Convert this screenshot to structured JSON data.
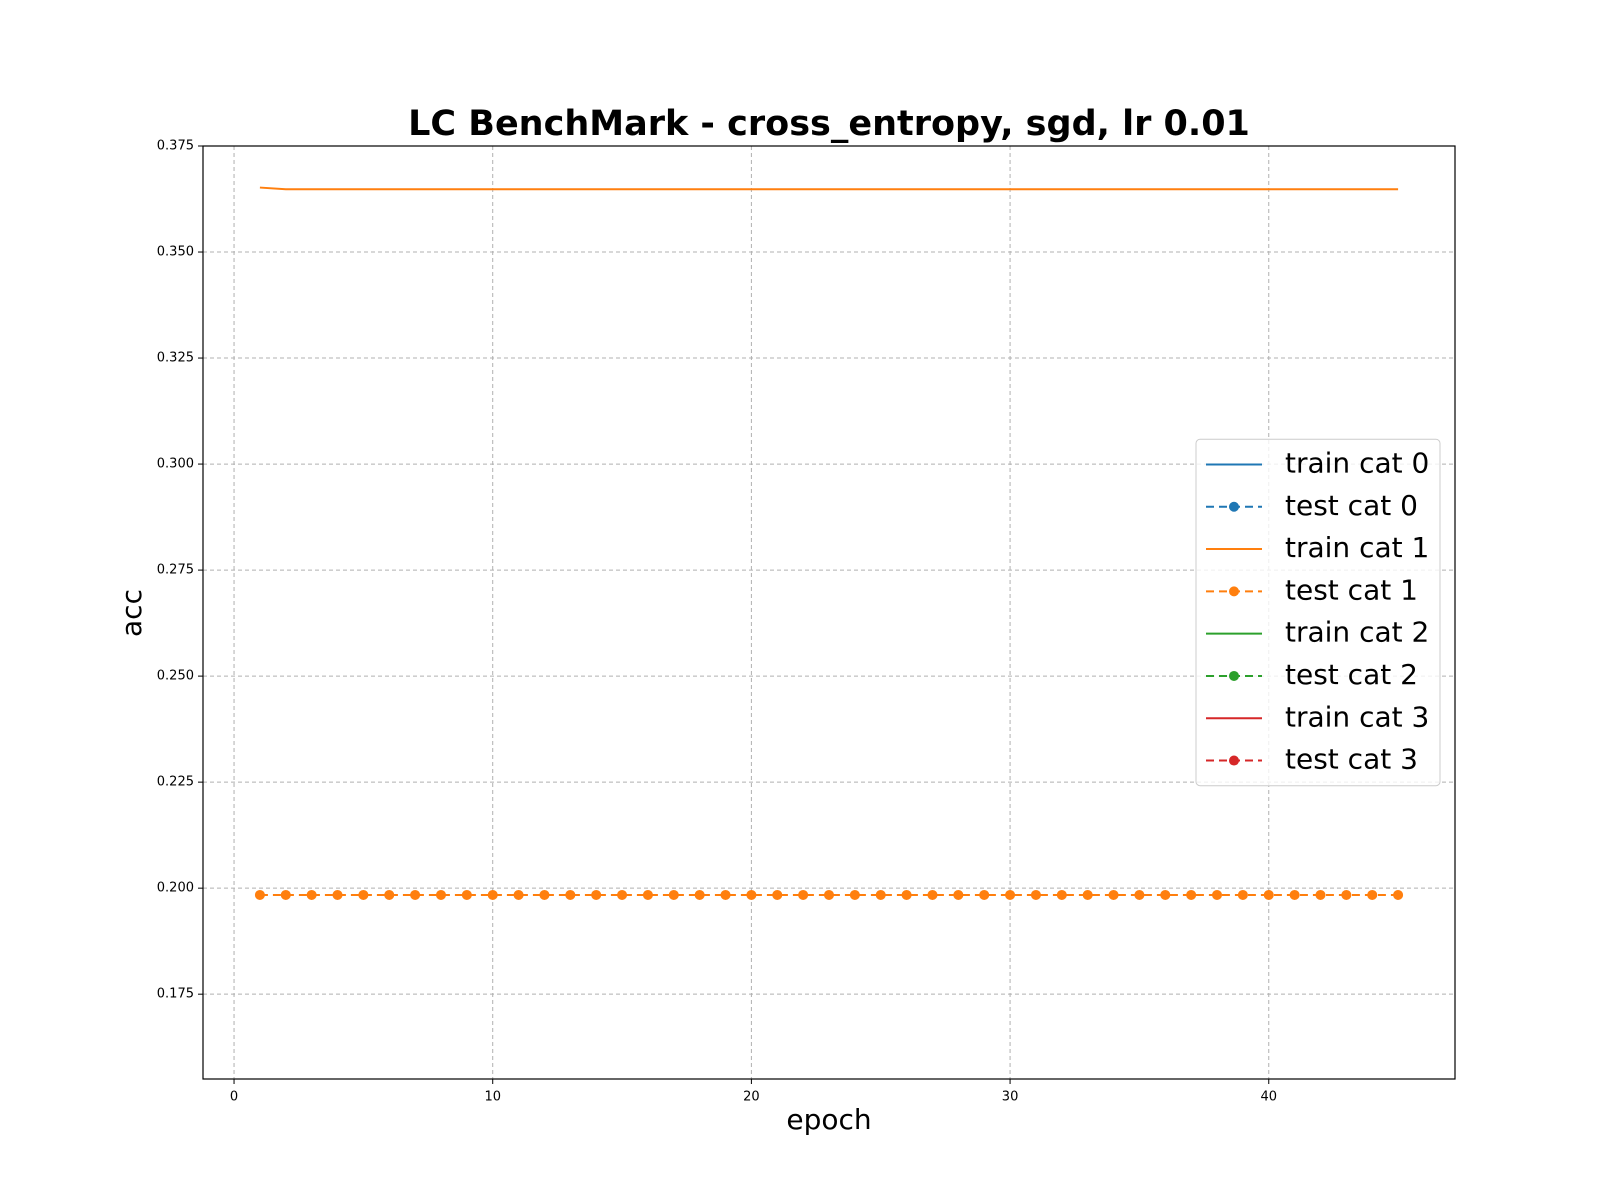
{
  "chart_data": {
    "type": "line",
    "title": "LC BenchMark - cross_entropy, sgd, lr 0.01",
    "xlabel": "epoch",
    "ylabel": "acc",
    "x": [
      1,
      2,
      3,
      4,
      5,
      6,
      7,
      8,
      9,
      10,
      11,
      12,
      13,
      14,
      15,
      16,
      17,
      18,
      19,
      20,
      21,
      22,
      23,
      24,
      25,
      26,
      27,
      28,
      29,
      30,
      31,
      32,
      33,
      34,
      35,
      36,
      37,
      38,
      39,
      40,
      41,
      42,
      43,
      44,
      45
    ],
    "xlim": [
      -1.2,
      47.2
    ],
    "xticks": [
      0,
      10,
      20,
      30,
      40
    ],
    "ylim": [
      0.155,
      0.375
    ],
    "yticks": [
      0.175,
      {
        "value": 0.2,
        "label": "0.200"
      },
      0.225,
      {
        "value": 0.25,
        "label": "0.250"
      },
      0.275,
      {
        "value": 0.3,
        "label": "0.300"
      },
      0.325,
      {
        "value": 0.35,
        "label": "0.350"
      },
      0.375
    ],
    "grid": true,
    "legend": "center right",
    "series": [
      {
        "name": "train cat 0",
        "color": "#1f77b4",
        "linestyle": "solid",
        "marker": "none",
        "values": [
          null,
          null,
          null,
          null,
          null,
          null,
          null,
          null,
          null,
          null,
          null,
          null,
          null,
          null,
          null,
          null,
          null,
          null,
          null,
          null,
          null,
          null,
          null,
          null,
          null,
          null,
          null,
          null,
          null,
          null,
          null,
          null,
          null,
          null,
          null,
          null,
          null,
          null,
          null,
          null,
          null,
          null,
          null,
          null,
          null
        ]
      },
      {
        "name": "test cat 0",
        "color": "#1f77b4",
        "linestyle": "dashed",
        "marker": "circle",
        "values": [
          null,
          null,
          null,
          null,
          null,
          null,
          null,
          null,
          null,
          null,
          null,
          null,
          null,
          null,
          null,
          null,
          null,
          null,
          null,
          null,
          null,
          null,
          null,
          null,
          null,
          null,
          null,
          null,
          null,
          null,
          null,
          null,
          null,
          null,
          null,
          null,
          null,
          null,
          null,
          null,
          null,
          null,
          null,
          null,
          null
        ]
      },
      {
        "name": "train cat 1",
        "color": "#ff7f0e",
        "linestyle": "solid",
        "marker": "none",
        "values": [
          0.3652,
          0.3648,
          0.3648,
          0.3648,
          0.3648,
          0.3648,
          0.3648,
          0.3648,
          0.3648,
          0.3648,
          0.3648,
          0.3648,
          0.3648,
          0.3648,
          0.3648,
          0.3648,
          0.3648,
          0.3648,
          0.3648,
          0.3648,
          0.3648,
          0.3648,
          0.3648,
          0.3648,
          0.3648,
          0.3648,
          0.3648,
          0.3648,
          0.3648,
          0.3648,
          0.3648,
          0.3648,
          0.3648,
          0.3648,
          0.3648,
          0.3648,
          0.3648,
          0.3648,
          0.3648,
          0.3648,
          0.3648,
          0.3648,
          0.3648,
          0.3648,
          0.3648
        ]
      },
      {
        "name": "test cat 1",
        "color": "#ff7f0e",
        "linestyle": "dashed",
        "marker": "circle",
        "values": [
          0.1984,
          0.1984,
          0.1984,
          0.1984,
          0.1984,
          0.1984,
          0.1984,
          0.1984,
          0.1984,
          0.1984,
          0.1984,
          0.1984,
          0.1984,
          0.1984,
          0.1984,
          0.1984,
          0.1984,
          0.1984,
          0.1984,
          0.1984,
          0.1984,
          0.1984,
          0.1984,
          0.1984,
          0.1984,
          0.1984,
          0.1984,
          0.1984,
          0.1984,
          0.1984,
          0.1984,
          0.1984,
          0.1984,
          0.1984,
          0.1984,
          0.1984,
          0.1984,
          0.1984,
          0.1984,
          0.1984,
          0.1984,
          0.1984,
          0.1984,
          0.1984,
          0.1984
        ]
      },
      {
        "name": "train cat 2",
        "color": "#2ca02c",
        "linestyle": "solid",
        "marker": "none",
        "values": [
          null,
          null,
          null,
          null,
          null,
          null,
          null,
          null,
          null,
          null,
          null,
          null,
          null,
          null,
          null,
          null,
          null,
          null,
          null,
          null,
          null,
          null,
          null,
          null,
          null,
          null,
          null,
          null,
          null,
          null,
          null,
          null,
          null,
          null,
          null,
          null,
          null,
          null,
          null,
          null,
          null,
          null,
          null,
          null,
          null
        ]
      },
      {
        "name": "test cat 2",
        "color": "#2ca02c",
        "linestyle": "dashed",
        "marker": "circle",
        "values": [
          null,
          null,
          null,
          null,
          null,
          null,
          null,
          null,
          null,
          null,
          null,
          null,
          null,
          null,
          null,
          null,
          null,
          null,
          null,
          null,
          null,
          null,
          null,
          null,
          null,
          null,
          null,
          null,
          null,
          null,
          null,
          null,
          null,
          null,
          null,
          null,
          null,
          null,
          null,
          null,
          null,
          null,
          null,
          null,
          null
        ]
      },
      {
        "name": "train cat 3",
        "color": "#d62728",
        "linestyle": "solid",
        "marker": "none",
        "values": [
          null,
          null,
          null,
          null,
          null,
          null,
          null,
          null,
          null,
          null,
          null,
          null,
          null,
          null,
          null,
          null,
          null,
          null,
          null,
          null,
          null,
          null,
          null,
          null,
          null,
          null,
          null,
          null,
          null,
          null,
          null,
          null,
          null,
          null,
          null,
          null,
          null,
          null,
          null,
          null,
          null,
          null,
          null,
          null,
          null
        ]
      },
      {
        "name": "test cat 3",
        "color": "#d62728",
        "linestyle": "dashed",
        "marker": "circle",
        "values": [
          null,
          null,
          null,
          null,
          null,
          null,
          null,
          null,
          null,
          null,
          null,
          null,
          null,
          null,
          null,
          null,
          null,
          null,
          null,
          null,
          null,
          null,
          null,
          null,
          null,
          null,
          null,
          null,
          null,
          null,
          null,
          null,
          null,
          null,
          null,
          null,
          null,
          null,
          null,
          null,
          null,
          null,
          null,
          null,
          null
        ]
      }
    ]
  }
}
